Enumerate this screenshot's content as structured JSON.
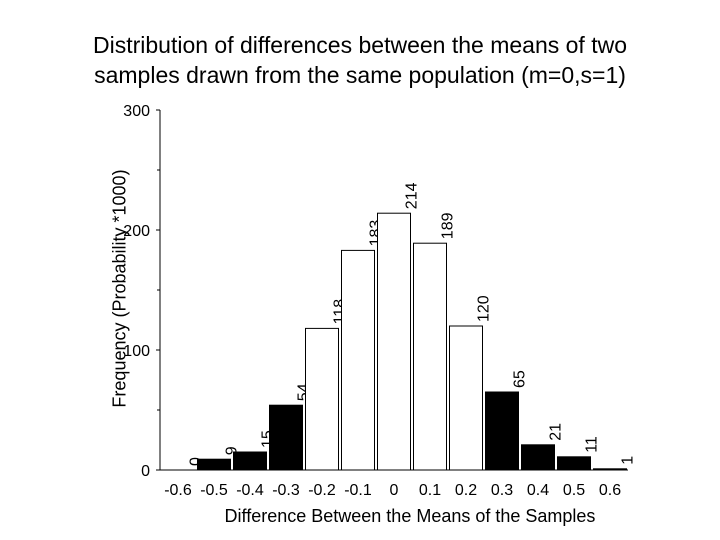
{
  "chart_data": {
    "type": "bar",
    "title": "Distribution of differences between the means of two samples drawn from the same population (m=0,s=1)",
    "title_lines": [
      "Distribution of differences between the means of two",
      "samples drawn from the same population (m=0,s=1)"
    ],
    "xlabel": "Difference Between the Means of the Samples",
    "ylabel": "Frequency (Probability *1000)",
    "ylim": [
      0,
      300
    ],
    "y_ticks": [
      "0",
      "100",
      "200",
      "300"
    ],
    "x_ticks": [
      "-0.6",
      "-0.5",
      "-0.4",
      "-0.3",
      "-0.2",
      "-0.1",
      "0",
      "0.1",
      "0.2",
      "0.3",
      "0.4",
      "0.5",
      "0.6"
    ],
    "categories": [
      "-0.6",
      "-0.5",
      "-0.4",
      "-0.3",
      "-0.2",
      "-0.1",
      "0",
      "0.1",
      "0.2",
      "0.3",
      "0.4",
      "0.5",
      "0.6"
    ],
    "values": [
      0,
      9,
      15,
      54,
      118,
      183,
      214,
      189,
      120,
      65,
      21,
      11,
      1
    ],
    "data_labels": [
      "0",
      "9",
      "15",
      "54",
      "118",
      "183",
      "214",
      "189",
      "120",
      "65",
      "21",
      "11",
      "1"
    ],
    "highlighted": [
      true,
      true,
      true,
      true,
      false,
      false,
      false,
      false,
      false,
      true,
      true,
      true,
      true
    ],
    "colors": {
      "highlight": "#000000",
      "normal": "#ffffff",
      "stroke": "#000000"
    },
    "grid": false
  }
}
